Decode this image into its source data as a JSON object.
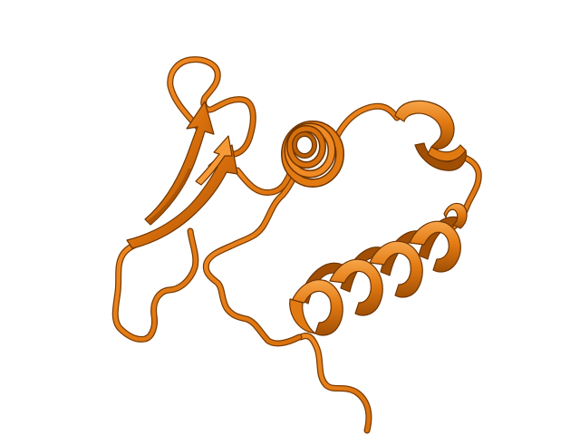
{
  "image": {
    "subject": "protein-cartoon-model",
    "colors": {
      "background": "#ffffff",
      "main": "#e0780f",
      "dark": "#a04f05",
      "shade": "#b95f08",
      "light": "#f59a36",
      "outline": "#6e3400"
    }
  }
}
